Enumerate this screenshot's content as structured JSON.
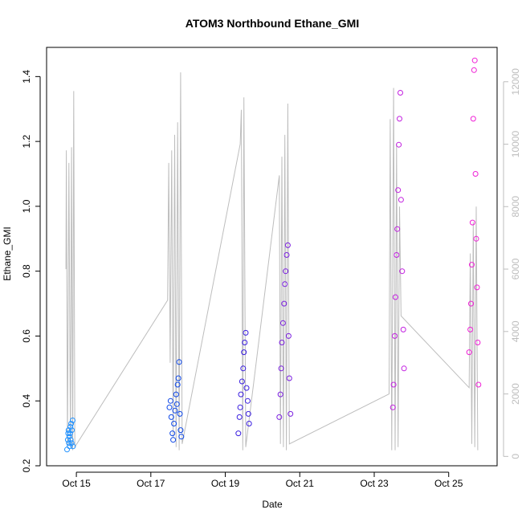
{
  "chart_data": {
    "type": "scatter",
    "title": "ATOM3 Northbound Ethane_GMI",
    "xlabel": "Date",
    "ylabel": "Ethane_GMI",
    "x_ticks": [
      "Oct 15",
      "Oct 17",
      "Oct 19",
      "Oct 21",
      "Oct 23",
      "Oct 25"
    ],
    "y_ticks": [
      "0.2",
      "0.4",
      "0.6",
      "0.8",
      "1.0",
      "1.2",
      "1.4"
    ],
    "y2_ticks": [
      "0",
      "2000",
      "4000",
      "6000",
      "8000",
      "10000",
      "12000"
    ],
    "xlim": [
      "Oct 14.2",
      "Oct 26.3"
    ],
    "ylim": [
      0.2,
      1.49
    ],
    "y2lim": [
      -300,
      13100
    ],
    "grid": false,
    "colors": {
      "altitude_line": "#bdbdbd",
      "text": "#000000",
      "secondary_axis": "#bdbdbd",
      "axis": "#000000"
    },
    "altitude_trace": {
      "description_units": "secondary axis (altitude)",
      "points": [
        [
          14.72,
          6000
        ],
        [
          14.73,
          9800
        ],
        [
          14.76,
          300
        ],
        [
          14.8,
          9400
        ],
        [
          14.84,
          300
        ],
        [
          14.87,
          9900
        ],
        [
          14.9,
          200
        ],
        [
          14.93,
          11700
        ],
        [
          14.96,
          300
        ],
        [
          17.45,
          5000
        ],
        [
          17.48,
          9400
        ],
        [
          17.52,
          3000
        ],
        [
          17.56,
          9800
        ],
        [
          17.6,
          600
        ],
        [
          17.64,
          10300
        ],
        [
          17.68,
          300
        ],
        [
          17.72,
          10700
        ],
        [
          17.76,
          200
        ],
        [
          17.8,
          12300
        ],
        [
          17.84,
          400
        ],
        [
          19.4,
          10000
        ],
        [
          19.43,
          11100
        ],
        [
          19.47,
          200
        ],
        [
          19.5,
          11500
        ],
        [
          19.55,
          300
        ],
        [
          20.45,
          9000
        ],
        [
          20.48,
          400
        ],
        [
          20.52,
          9600
        ],
        [
          20.56,
          300
        ],
        [
          20.6,
          10300
        ],
        [
          20.64,
          200
        ],
        [
          20.68,
          11300
        ],
        [
          20.72,
          400
        ],
        [
          23.4,
          2000
        ],
        [
          23.43,
          10800
        ],
        [
          23.47,
          200
        ],
        [
          23.52,
          11800
        ],
        [
          23.56,
          200
        ],
        [
          23.6,
          10000
        ],
        [
          23.64,
          300
        ],
        [
          23.68,
          8000
        ],
        [
          23.72,
          4500
        ],
        [
          25.55,
          2200
        ],
        [
          25.58,
          6500
        ],
        [
          25.62,
          400
        ],
        [
          25.66,
          7500
        ],
        [
          25.7,
          300
        ],
        [
          25.74,
          8000
        ],
        [
          25.78,
          200
        ]
      ]
    },
    "series": [
      {
        "color": "#1e90ff",
        "points": [
          [
            14.75,
            0.25
          ],
          [
            14.77,
            0.28
          ],
          [
            14.78,
            0.3
          ],
          [
            14.79,
            0.31
          ],
          [
            14.8,
            0.27
          ],
          [
            14.81,
            0.29
          ],
          [
            14.82,
            0.26
          ],
          [
            14.83,
            0.3
          ],
          [
            14.84,
            0.32
          ],
          [
            14.85,
            0.28
          ],
          [
            14.86,
            0.33
          ],
          [
            14.87,
            0.27
          ],
          [
            14.88,
            0.31
          ],
          [
            14.9,
            0.34
          ],
          [
            14.91,
            0.26
          ]
        ]
      },
      {
        "color": "#0d47e8",
        "points": [
          [
            17.5,
            0.38
          ],
          [
            17.53,
            0.4
          ],
          [
            17.55,
            0.35
          ],
          [
            17.58,
            0.3
          ],
          [
            17.6,
            0.28
          ],
          [
            17.62,
            0.33
          ],
          [
            17.65,
            0.37
          ],
          [
            17.68,
            0.42
          ],
          [
            17.7,
            0.39
          ],
          [
            17.72,
            0.45
          ],
          [
            17.74,
            0.47
          ],
          [
            17.76,
            0.52
          ],
          [
            17.78,
            0.36
          ],
          [
            17.8,
            0.31
          ],
          [
            17.82,
            0.29
          ]
        ]
      },
      {
        "color": "#3a1ee0",
        "points": [
          [
            19.35,
            0.3
          ],
          [
            19.38,
            0.35
          ],
          [
            19.4,
            0.38
          ],
          [
            19.42,
            0.42
          ],
          [
            19.45,
            0.46
          ],
          [
            19.48,
            0.5
          ],
          [
            19.5,
            0.55
          ],
          [
            19.52,
            0.58
          ],
          [
            19.55,
            0.61
          ],
          [
            19.57,
            0.44
          ],
          [
            19.6,
            0.4
          ],
          [
            19.62,
            0.36
          ],
          [
            19.64,
            0.33
          ]
        ]
      },
      {
        "color": "#7b1fe0",
        "points": [
          [
            20.45,
            0.35
          ],
          [
            20.48,
            0.42
          ],
          [
            20.5,
            0.5
          ],
          [
            20.52,
            0.58
          ],
          [
            20.55,
            0.64
          ],
          [
            20.58,
            0.7
          ],
          [
            20.6,
            0.76
          ],
          [
            20.62,
            0.8
          ],
          [
            20.65,
            0.85
          ],
          [
            20.68,
            0.88
          ],
          [
            20.7,
            0.6
          ],
          [
            20.72,
            0.47
          ],
          [
            20.75,
            0.36
          ]
        ]
      },
      {
        "color": "#c21fe0",
        "points": [
          [
            23.5,
            0.38
          ],
          [
            23.52,
            0.45
          ],
          [
            23.55,
            0.6
          ],
          [
            23.57,
            0.72
          ],
          [
            23.6,
            0.85
          ],
          [
            23.62,
            0.93
          ],
          [
            23.64,
            1.05
          ],
          [
            23.66,
            1.19
          ],
          [
            23.68,
            1.27
          ],
          [
            23.7,
            1.35
          ],
          [
            23.72,
            1.02
          ],
          [
            23.75,
            0.8
          ],
          [
            23.78,
            0.62
          ],
          [
            23.8,
            0.5
          ]
        ]
      },
      {
        "color": "#f01fd6",
        "points": [
          [
            25.55,
            0.55
          ],
          [
            25.58,
            0.62
          ],
          [
            25.6,
            0.7
          ],
          [
            25.62,
            0.82
          ],
          [
            25.64,
            0.95
          ],
          [
            25.66,
            1.27
          ],
          [
            25.68,
            1.42
          ],
          [
            25.7,
            1.45
          ],
          [
            25.72,
            1.1
          ],
          [
            25.74,
            0.9
          ],
          [
            25.76,
            0.75
          ],
          [
            25.78,
            0.58
          ],
          [
            25.8,
            0.45
          ]
        ]
      }
    ]
  }
}
